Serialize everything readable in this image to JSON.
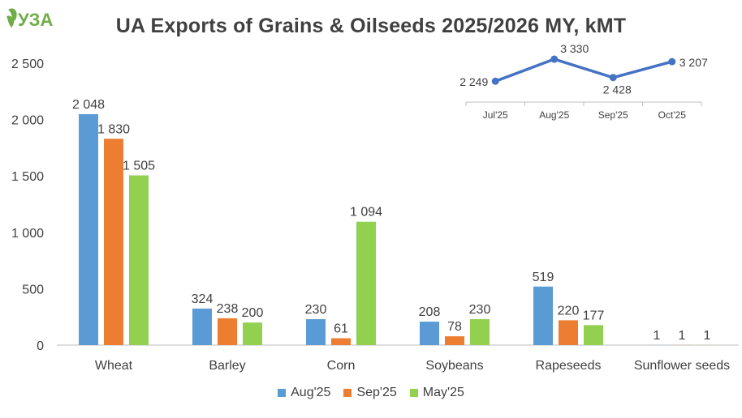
{
  "logo": {
    "text": "УЗА",
    "color": "#70AD47"
  },
  "chart_data": [
    {
      "type": "bar",
      "title": "UA Exports of Grains & Oilseeds 2025/2026 MY, kMT",
      "categories": [
        "Wheat",
        "Barley",
        "Corn",
        "Soybeans",
        "Rapeseeds",
        "Sunflower seeds"
      ],
      "series": [
        {
          "name": "Aug'25",
          "color": "#5B9BD5",
          "values": [
            2048,
            324,
            230,
            208,
            519,
            1
          ],
          "labels": [
            "2 048",
            "324",
            "230",
            "208",
            "519",
            "1"
          ]
        },
        {
          "name": "Sep'25",
          "color": "#ED7D31",
          "values": [
            1830,
            238,
            61,
            78,
            220,
            1
          ],
          "labels": [
            "1 830",
            "238",
            "61",
            "78",
            "220",
            "1"
          ]
        },
        {
          "name": "May'25",
          "color": "#92D050",
          "values": [
            1505,
            200,
            1094,
            230,
            177,
            1
          ],
          "labels": [
            "1 505",
            "200",
            "1 094",
            "230",
            "177",
            "1"
          ]
        }
      ],
      "ylim": [
        0,
        2500
      ],
      "yticks": [
        0,
        500,
        1000,
        1500,
        2000,
        2500
      ],
      "ytick_labels": [
        "0",
        "500",
        "1 000",
        "1 500",
        "2 000",
        "2 500"
      ],
      "legend_position": "bottom",
      "grid": false
    },
    {
      "type": "line",
      "categories": [
        "Jul'25",
        "Aug'25",
        "Sep'25",
        "Oct'25"
      ],
      "values": [
        2249,
        3330,
        2428,
        3207
      ],
      "labels": [
        "2 249",
        "3 330",
        "2 428",
        "3 207"
      ],
      "color": "#4472C4",
      "legend_position": "none",
      "grid": false
    }
  ]
}
